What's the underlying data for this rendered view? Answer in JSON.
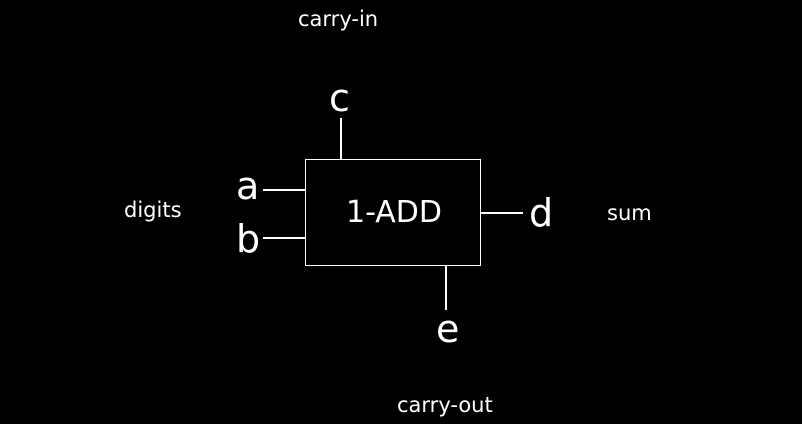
{
  "diagram": {
    "box": {
      "label": "1-ADD"
    },
    "ports": {
      "a": "a",
      "b": "b",
      "c": "c",
      "d": "d",
      "e": "e"
    },
    "annotations": {
      "carry_in": "carry-in",
      "digits": "digits",
      "sum": "sum",
      "carry_out": "carry-out"
    }
  },
  "colors": {
    "background": "#000000",
    "foreground": "#ffffff"
  }
}
